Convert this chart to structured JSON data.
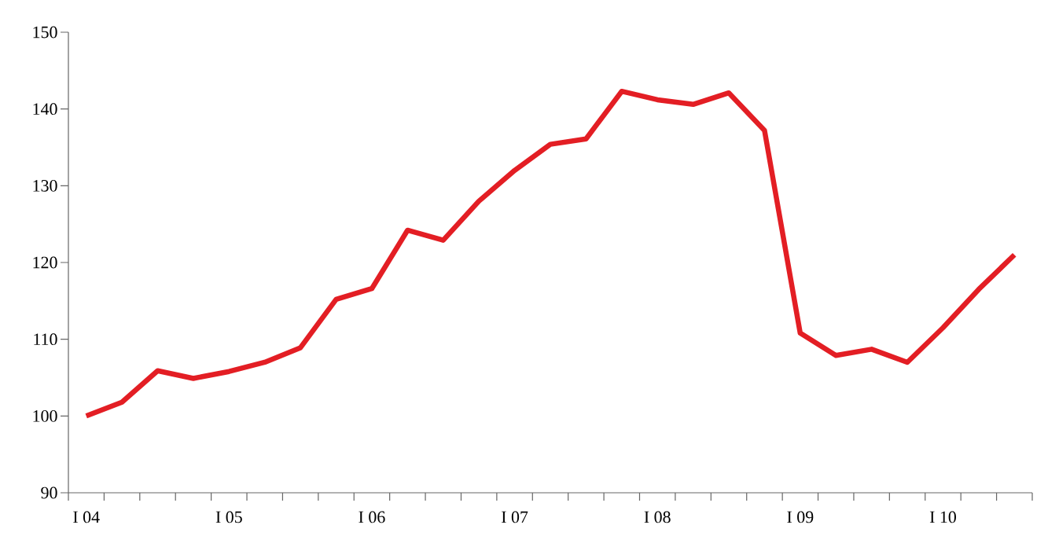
{
  "chart_data": {
    "type": "line",
    "categories": [
      "I 04",
      null,
      null,
      null,
      "I 05",
      null,
      null,
      null,
      "I 06",
      null,
      null,
      null,
      "I 07",
      null,
      null,
      null,
      "I 08",
      null,
      null,
      null,
      "I 09",
      null,
      null,
      null,
      "I 10",
      null,
      null
    ],
    "series": [
      {
        "color": "#e31e24",
        "values": [
          100,
          101.8,
          105.9,
          104.9,
          105.8,
          107,
          108.9,
          115.2,
          116.6,
          124.2,
          122.9,
          128,
          132,
          135.4,
          136.1,
          142.3,
          141.2,
          140.6,
          142.1,
          137.2,
          110.8,
          107.9,
          108.7,
          107,
          111.5,
          116.5,
          121
        ]
      }
    ],
    "ylim": [
      90,
      150
    ],
    "yticks": [
      90,
      100,
      110,
      120,
      130,
      140,
      150
    ]
  }
}
